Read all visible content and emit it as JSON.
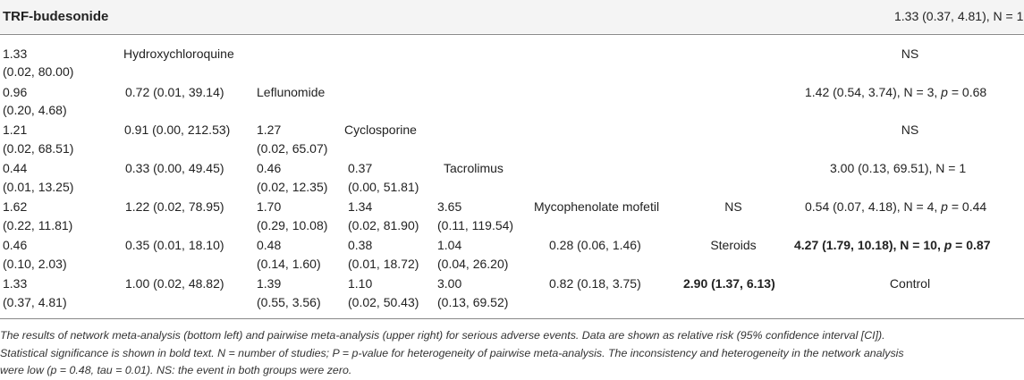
{
  "header": {
    "title": "TRF-budesonide",
    "result": "1.33 (0.37, 4.81), N = 1"
  },
  "rows": {
    "hydroxychloroquine": {
      "c0a": "1.33",
      "c0b": "(0.02, 80.00)",
      "label": "Hydroxychloroquine",
      "upper": "NS"
    },
    "leflunomide": {
      "c0a": "0.96",
      "c0b": "(0.20, 4.68)",
      "c1": "0.72 (0.01, 39.14)",
      "label": "Leflunomide",
      "upper_pre": "1.42 (0.54, 3.74), N = 3, ",
      "upper_p": "p",
      "upper_post": " = 0.68"
    },
    "cyclosporine": {
      "c0a": "1.21",
      "c0b": "(0.02, 68.51)",
      "c1": "0.91 (0.00, 212.53)",
      "c2a": "1.27",
      "c2b": "(0.02, 65.07)",
      "label": "Cyclosporine",
      "upper": "NS"
    },
    "tacrolimus": {
      "c0a": "0.44",
      "c0b": "(0.01, 13.25)",
      "c1": "0.33 (0.00, 49.45)",
      "c2a": "0.46",
      "c2b": "(0.02, 12.35)",
      "c3a": "0.37",
      "c3b": "(0.00, 51.81)",
      "label": "Tacrolimus",
      "upper": "3.00 (0.13, 69.51), N = 1"
    },
    "mycophenolate": {
      "c0a": "1.62",
      "c0b": "(0.22, 11.81)",
      "c1": "1.22 (0.02, 78.95)",
      "c2a": "1.70",
      "c2b": "(0.29, 10.08)",
      "c3a": "1.34",
      "c3b": "(0.02, 81.90)",
      "c4a": "3.65",
      "c4b": "(0.11, 119.54)",
      "label": "Mycophenolate mofetil",
      "c6": "NS",
      "upper_pre": "0.54 (0.07, 4.18), N = 4, ",
      "upper_p": "p",
      "upper_post": " = 0.44"
    },
    "steroids": {
      "c0a": "0.46",
      "c0b": "(0.10, 2.03)",
      "c1": "0.35 (0.01, 18.10)",
      "c2a": "0.48",
      "c2b": "(0.14, 1.60)",
      "c3a": "0.38",
      "c3b": "(0.01, 18.72)",
      "c4a": "1.04",
      "c4b": "(0.04, 26.20)",
      "c5": "0.28 (0.06, 1.46)",
      "label": "Steroids",
      "upper_pre": "4.27 (1.79, 10.18), N = 10, ",
      "upper_p": "p",
      "upper_post": " = 0.87"
    },
    "control": {
      "c0a": "1.33",
      "c0b": "(0.37, 4.81)",
      "c1": "1.00 (0.02, 48.82)",
      "c2a": "1.39",
      "c2b": "(0.55, 3.56)",
      "c3a": "1.10",
      "c3b": "(0.02, 50.43)",
      "c4a": "3.00",
      "c4b": "(0.13, 69.52)",
      "c5": "0.82 (0.18, 3.75)",
      "c6": "2.90 (1.37, 6.13)",
      "label": "Control"
    }
  },
  "caption": {
    "line1": "The results of network meta-analysis (bottom left) and pairwise meta-analysis (upper right) for serious adverse events. Data are shown as relative risk (95% confidence interval [CI]).",
    "line2": "Statistical significance is shown in bold text. N = number of studies; P = p-value for heterogeneity of pairwise meta-analysis. The inconsistency and heterogeneity in the network analysis",
    "line3": "were low (p = 0.48, tau = 0.01). NS: the event in both groups were zero."
  }
}
